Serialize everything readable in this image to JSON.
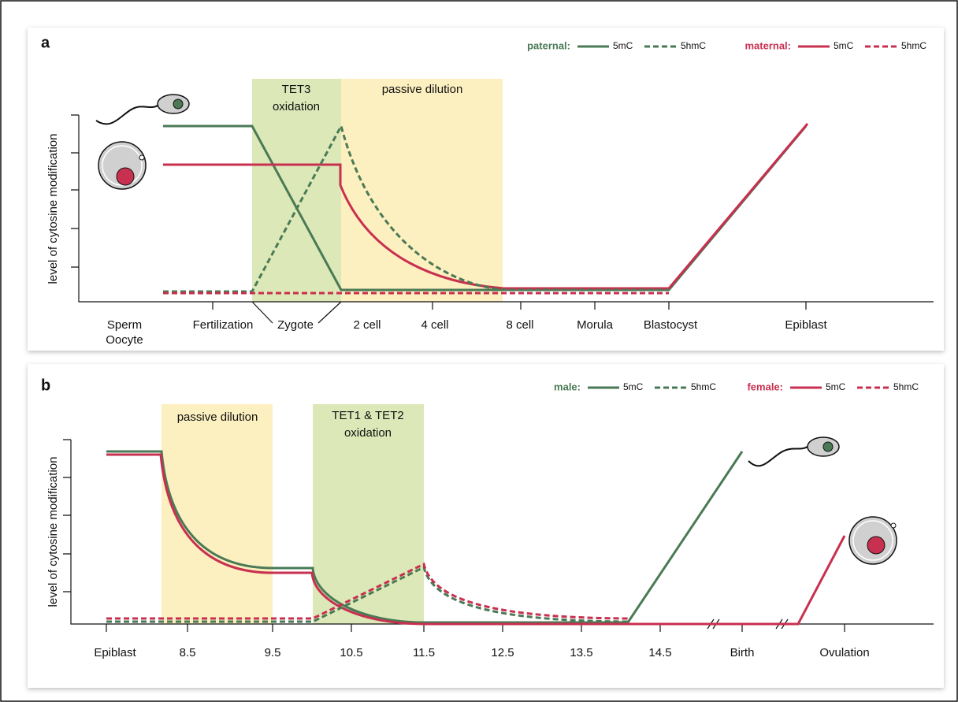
{
  "panels": [
    {
      "label": "a",
      "legend": [
        {
          "name": "paternal:",
          "items": [
            "5mC",
            "5hmC"
          ]
        },
        {
          "name": "maternal:",
          "items": [
            "5mC",
            "5hmC"
          ]
        }
      ],
      "y_axis_label": "level of cytosine modification",
      "regions": [
        {
          "label": [
            "TET3",
            "oxidation"
          ]
        },
        {
          "label": [
            "passive dilution"
          ]
        }
      ],
      "x_labels": [
        "Sperm",
        "Oocyte",
        "Fertilization",
        "Zygote",
        "2 cell",
        "4 cell",
        "8 cell",
        "Morula",
        "Blastocyst",
        "Epiblast"
      ]
    },
    {
      "label": "b",
      "legend": [
        {
          "name": "male:",
          "items": [
            "5mC",
            "5hmC"
          ]
        },
        {
          "name": "female:",
          "items": [
            "5mC",
            "5hmC"
          ]
        }
      ],
      "y_axis_label": "level of cytosine modification",
      "regions": [
        {
          "label": [
            "passive dilution"
          ]
        },
        {
          "label": [
            "TET1 & TET2",
            "oxidation"
          ]
        }
      ],
      "x_labels": [
        "Epiblast",
        "8.5",
        "9.5",
        "10.5",
        "11.5",
        "12.5",
        "13.5",
        "14.5",
        "Birth",
        "Ovulation"
      ]
    }
  ]
}
